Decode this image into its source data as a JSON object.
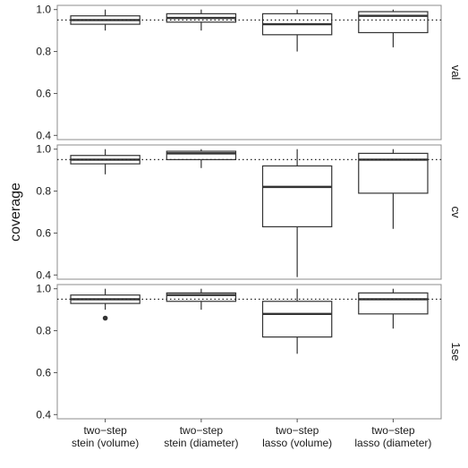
{
  "chart_data": {
    "type": "boxplot",
    "ylabel": "coverage",
    "xlabel": "",
    "reference_line": 0.95,
    "ylim": [
      0.38,
      1.02
    ],
    "yticks": [
      "0.4",
      "0.6",
      "0.8",
      "1.0"
    ],
    "categories": [
      [
        "two−step",
        "stein (volume)"
      ],
      [
        "two−step",
        "stein (diameter)"
      ],
      [
        "two−step",
        "lasso (volume)"
      ],
      [
        "two−step",
        "lasso (diameter)"
      ]
    ],
    "panels": [
      {
        "name": "val",
        "boxes": [
          {
            "whisker_low": 0.9,
            "q1": 0.93,
            "median": 0.95,
            "q3": 0.97,
            "whisker_high": 1.0,
            "outliers": []
          },
          {
            "whisker_low": 0.9,
            "q1": 0.94,
            "median": 0.96,
            "q3": 0.98,
            "whisker_high": 1.0,
            "outliers": []
          },
          {
            "whisker_low": 0.8,
            "q1": 0.88,
            "median": 0.93,
            "q3": 0.98,
            "whisker_high": 1.0,
            "outliers": []
          },
          {
            "whisker_low": 0.82,
            "q1": 0.89,
            "median": 0.97,
            "q3": 0.99,
            "whisker_high": 1.0,
            "outliers": []
          }
        ]
      },
      {
        "name": "cv",
        "boxes": [
          {
            "whisker_low": 0.88,
            "q1": 0.93,
            "median": 0.95,
            "q3": 0.97,
            "whisker_high": 1.0,
            "outliers": []
          },
          {
            "whisker_low": 0.91,
            "q1": 0.95,
            "median": 0.98,
            "q3": 0.99,
            "whisker_high": 1.0,
            "outliers": []
          },
          {
            "whisker_low": 0.39,
            "q1": 0.63,
            "median": 0.82,
            "q3": 0.92,
            "whisker_high": 1.0,
            "outliers": []
          },
          {
            "whisker_low": 0.62,
            "q1": 0.79,
            "median": 0.95,
            "q3": 0.98,
            "whisker_high": 1.0,
            "outliers": []
          }
        ]
      },
      {
        "name": "1se",
        "boxes": [
          {
            "whisker_low": 0.9,
            "q1": 0.93,
            "median": 0.95,
            "q3": 0.97,
            "whisker_high": 1.0,
            "outliers": [
              0.86
            ]
          },
          {
            "whisker_low": 0.9,
            "q1": 0.94,
            "median": 0.97,
            "q3": 0.98,
            "whisker_high": 1.0,
            "outliers": []
          },
          {
            "whisker_low": 0.69,
            "q1": 0.77,
            "median": 0.88,
            "q3": 0.94,
            "whisker_high": 1.0,
            "outliers": []
          },
          {
            "whisker_low": 0.81,
            "q1": 0.88,
            "median": 0.95,
            "q3": 0.98,
            "whisker_high": 1.0,
            "outliers": []
          }
        ]
      }
    ]
  }
}
